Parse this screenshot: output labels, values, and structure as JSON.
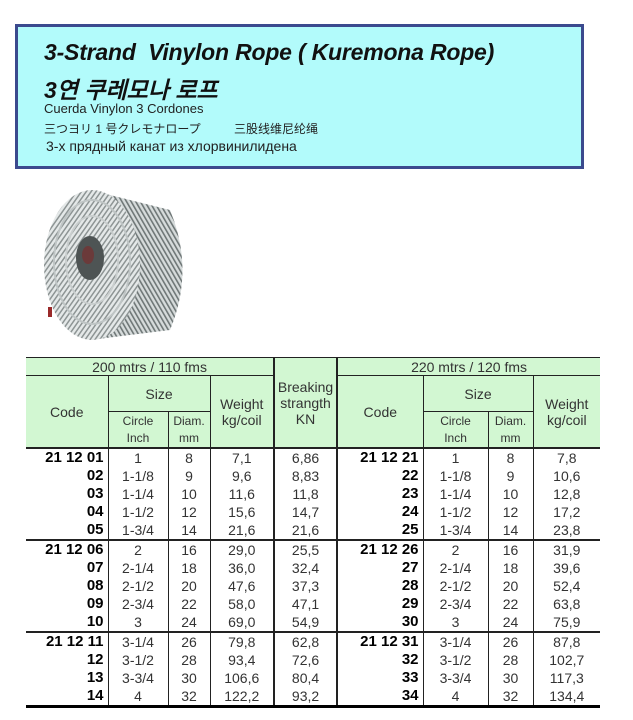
{
  "header": {
    "title_en": "3-Strand  Vinylon Rope ( Kuremona Rope)",
    "title_ko": "3연 쿠레모나 로프",
    "title_es": "Cuerda Vinylon 3 Cordones",
    "title_ja": "三つヨリ 1 号クレモナロープ",
    "title_zh": "三股线维尼纶绳",
    "title_ru": "3-х прядный канат из хлорвинилидена",
    "bg_color": "#b2fbfb",
    "border_color": "#3b4a8e"
  },
  "image": {
    "icon": "rope-coil-photo"
  },
  "table": {
    "header_color": "#d2f7d2",
    "group1_label": "200 mtrs / 110 fms",
    "group2_label": "220 mtrs / 120 fms",
    "code": "Code",
    "size": "Size",
    "circle": "Circle",
    "inch": "Inch",
    "diam": "Diam.",
    "mm": "mm",
    "weight": "Weight",
    "weight_unit": "kg/coil",
    "breaking1": "Breaking",
    "breaking2": "strangth",
    "breaking3": "KN",
    "groups": [
      [
        [
          "21 12 01",
          "1",
          "8",
          "7,1",
          "6,86",
          "21 12 21",
          "1",
          "8",
          "7,8"
        ],
        [
          "02",
          "1-1/8",
          "9",
          "9,6",
          "8,83",
          "22",
          "1-1/8",
          "9",
          "10,6"
        ],
        [
          "03",
          "1-1/4",
          "10",
          "11,6",
          "11,8",
          "23",
          "1-1/4",
          "10",
          "12,8"
        ],
        [
          "04",
          "1-1/2",
          "12",
          "15,6",
          "14,7",
          "24",
          "1-1/2",
          "12",
          "17,2"
        ],
        [
          "05",
          "1-3/4",
          "14",
          "21,6",
          "21,6",
          "25",
          "1-3/4",
          "14",
          "23,8"
        ]
      ],
      [
        [
          "21 12 06",
          "2",
          "16",
          "29,0",
          "25,5",
          "21 12 26",
          "2",
          "16",
          "31,9"
        ],
        [
          "07",
          "2-1/4",
          "18",
          "36,0",
          "32,4",
          "27",
          "2-1/4",
          "18",
          "39,6"
        ],
        [
          "08",
          "2-1/2",
          "20",
          "47,6",
          "37,3",
          "28",
          "2-1/2",
          "20",
          "52,4"
        ],
        [
          "09",
          "2-3/4",
          "22",
          "58,0",
          "47,1",
          "29",
          "2-3/4",
          "22",
          "63,8"
        ],
        [
          "10",
          "3",
          "24",
          "69,0",
          "54,9",
          "30",
          "3",
          "24",
          "75,9"
        ]
      ],
      [
        [
          "21 12 11",
          "3-1/4",
          "26",
          "79,8",
          "62,8",
          "21 12 31",
          "3-1/4",
          "26",
          "87,8"
        ],
        [
          "12",
          "3-1/2",
          "28",
          "93,4",
          "72,6",
          "32",
          "3-1/2",
          "28",
          "102,7"
        ],
        [
          "13",
          "3-3/4",
          "30",
          "106,6",
          "80,4",
          "33",
          "3-3/4",
          "30",
          "117,3"
        ],
        [
          "14",
          "4",
          "32",
          "122,2",
          "93,2",
          "34",
          "4",
          "32",
          "134,4"
        ]
      ]
    ]
  }
}
